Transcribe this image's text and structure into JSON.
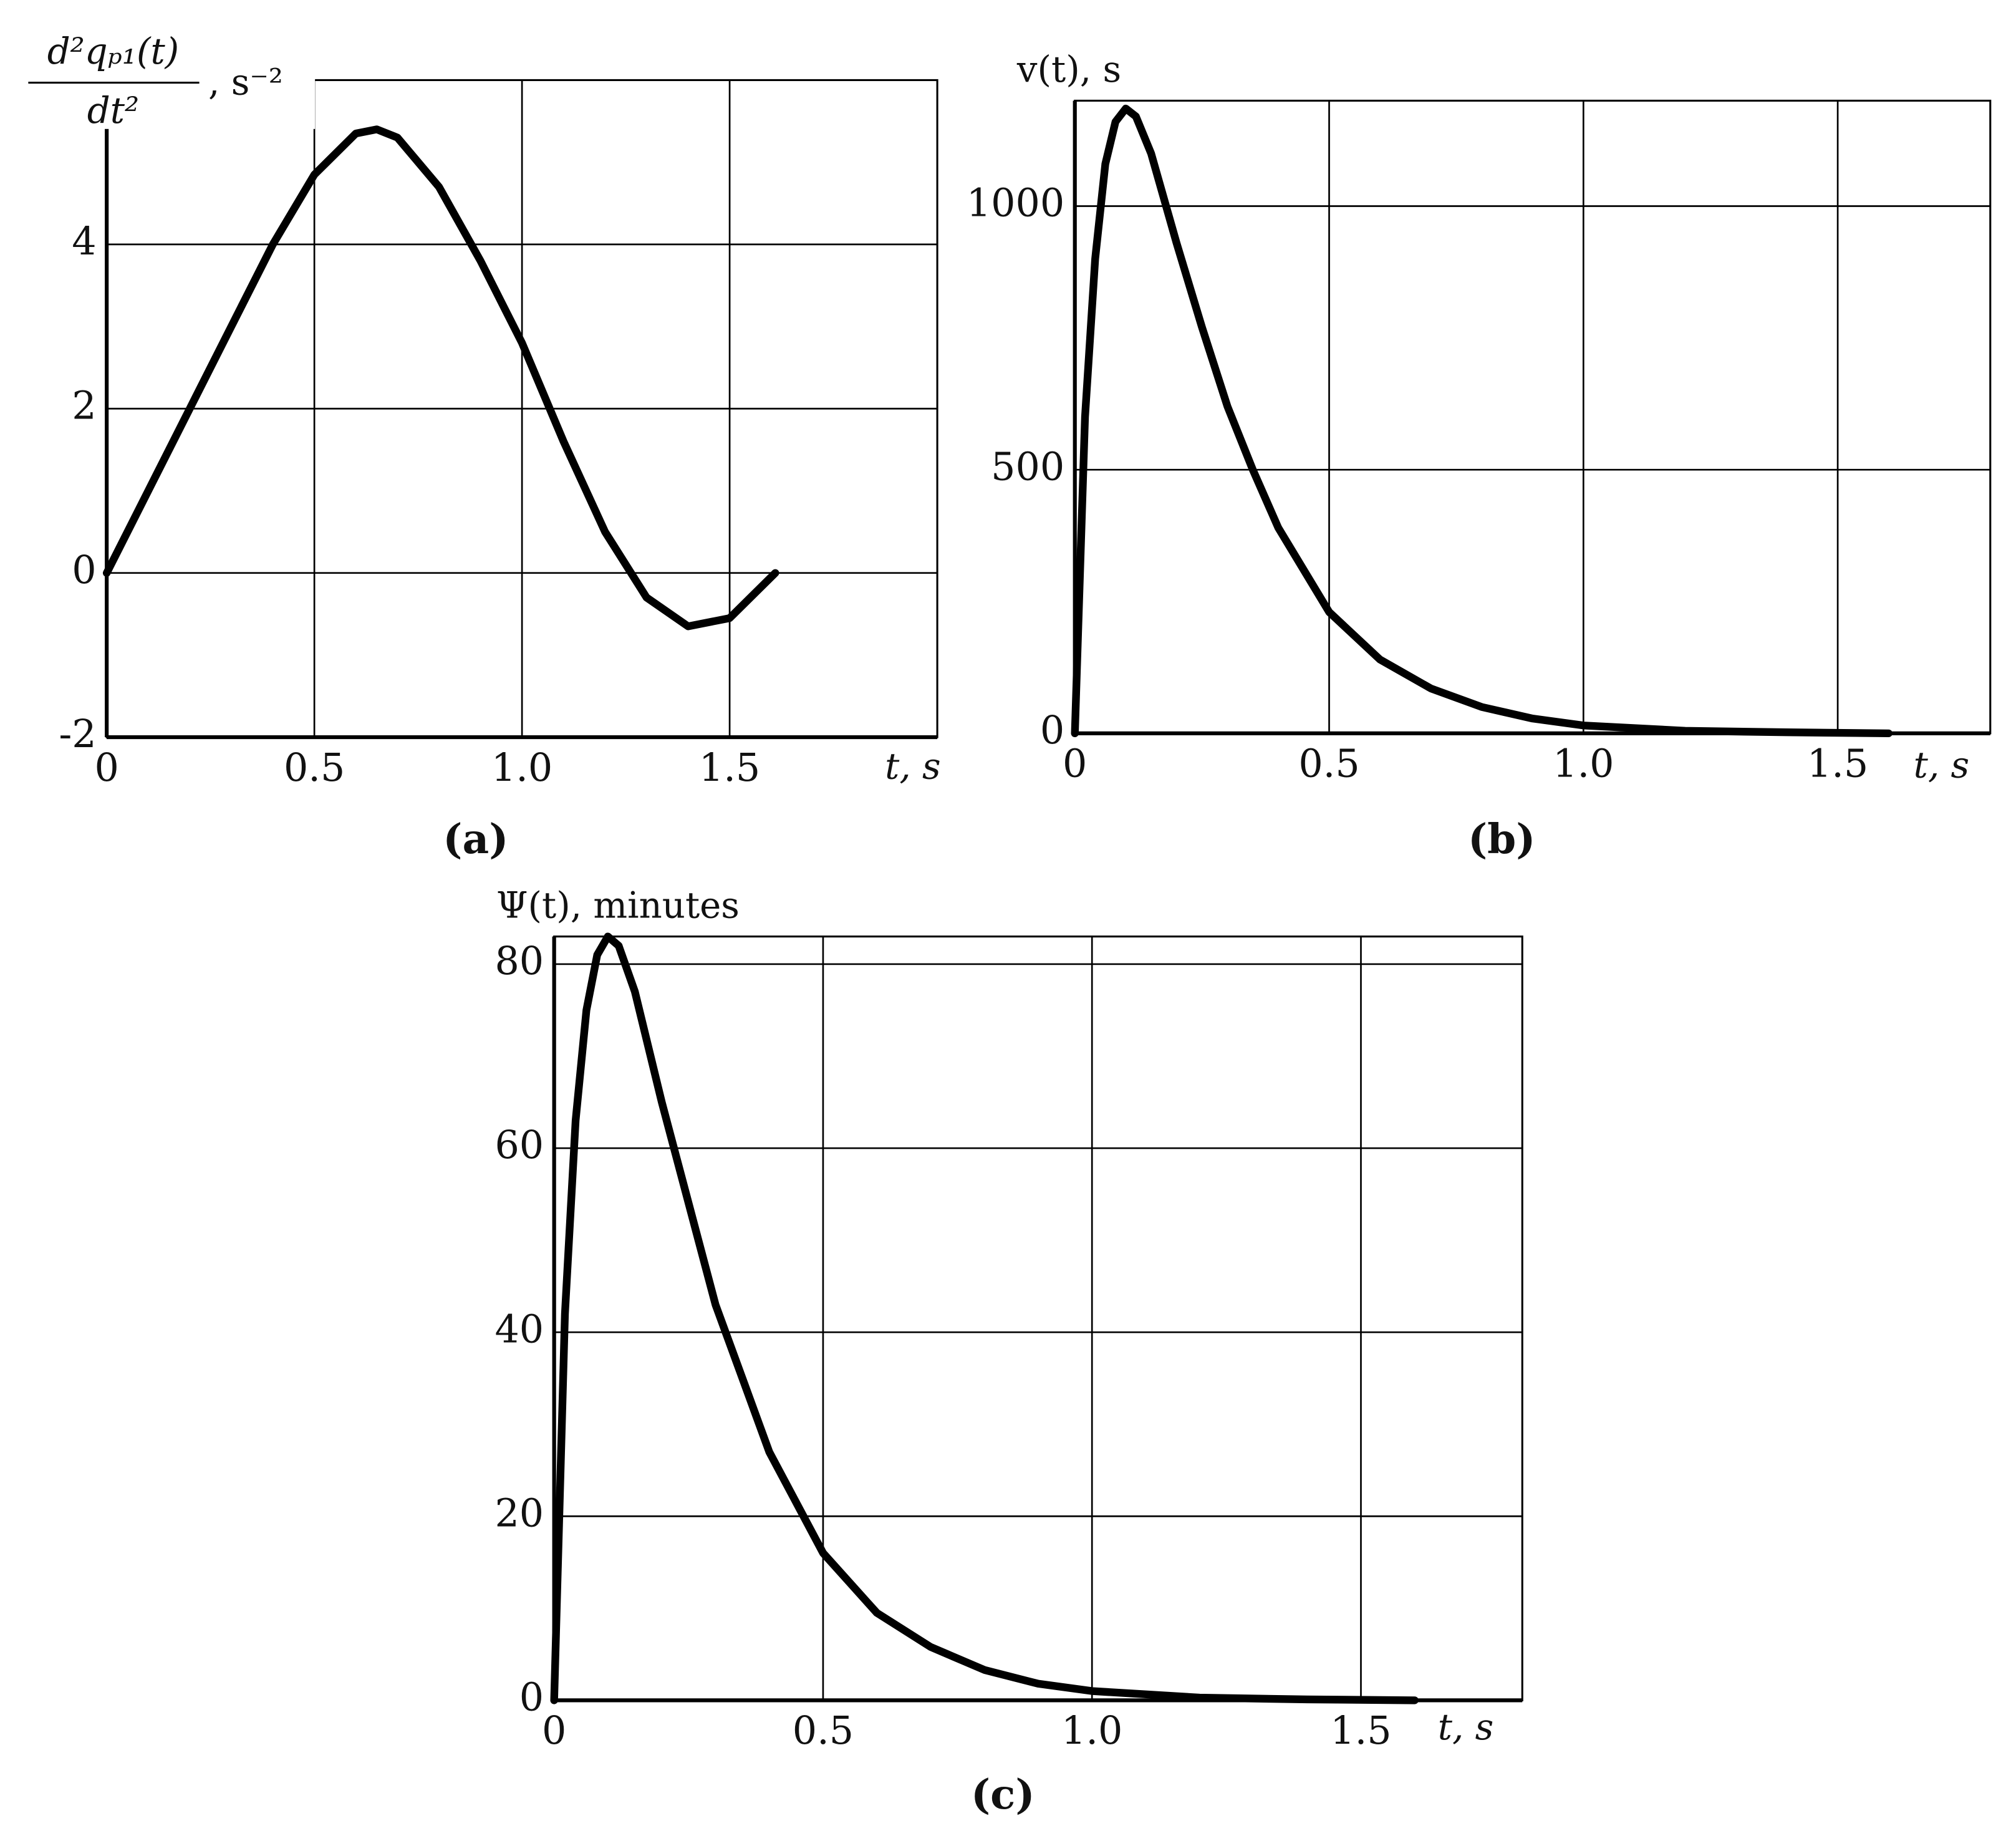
{
  "chart_data": [
    {
      "type": "line",
      "caption": "(a)",
      "ylabel": {
        "numerator": "d²qₚ₁(t)",
        "denominator": "dt²",
        "unit": ", s⁻²"
      },
      "xlabel": "t, s",
      "xlim": [
        0,
        2
      ],
      "xticks": [
        0,
        0.5,
        {
          "value": 1,
          "label": "1.0"
        },
        1.5
      ],
      "ylim": [
        -2,
        6
      ],
      "yticks": [
        -2,
        0,
        2,
        4
      ],
      "grid": true,
      "x": [
        0,
        0.1,
        0.2,
        0.3,
        0.4,
        0.5,
        0.6,
        0.65,
        0.7,
        0.8,
        0.9,
        1.0,
        1.1,
        1.2,
        1.3,
        1.4,
        1.5,
        1.61
      ],
      "series": [
        {
          "color": "#000000",
          "values": [
            0,
            1.0,
            2.0,
            3.0,
            4.0,
            4.85,
            5.35,
            5.4,
            5.3,
            4.7,
            3.8,
            2.8,
            1.6,
            0.5,
            -0.3,
            -0.65,
            -0.55,
            0
          ]
        }
      ]
    },
    {
      "type": "line",
      "caption": "(b)",
      "ylabel": "v(t), s",
      "xlabel": "t, s",
      "xlim": [
        0,
        1.8
      ],
      "xticks": [
        0,
        0.5,
        {
          "value": 1,
          "label": "1.0"
        },
        1.5
      ],
      "ylim": [
        0,
        1200
      ],
      "yticks": [
        0,
        500,
        1000
      ],
      "grid": true,
      "x": [
        0,
        0.02,
        0.04,
        0.06,
        0.08,
        0.1,
        0.12,
        0.15,
        0.2,
        0.25,
        0.3,
        0.35,
        0.4,
        0.5,
        0.6,
        0.7,
        0.8,
        0.9,
        1.0,
        1.2,
        1.4,
        1.6
      ],
      "series": [
        {
          "color": "#000000",
          "values": [
            0,
            600,
            900,
            1080,
            1160,
            1185,
            1170,
            1100,
            930,
            770,
            620,
            500,
            390,
            230,
            140,
            85,
            50,
            28,
            15,
            5,
            2,
            0
          ]
        }
      ]
    },
    {
      "type": "line",
      "caption": "(c)",
      "ylabel": "Ψ(t), minutes",
      "xlabel": "t, s",
      "xlim": [
        0,
        1.8
      ],
      "xticks": [
        0,
        0.5,
        {
          "value": 1,
          "label": "1.0"
        },
        1.5
      ],
      "ylim": [
        0,
        83
      ],
      "yticks": [
        0,
        20,
        40,
        60,
        80
      ],
      "grid": true,
      "x": [
        0,
        0.02,
        0.04,
        0.06,
        0.08,
        0.1,
        0.12,
        0.15,
        0.2,
        0.25,
        0.3,
        0.35,
        0.4,
        0.5,
        0.6,
        0.7,
        0.8,
        0.9,
        1.0,
        1.2,
        1.4,
        1.6
      ],
      "series": [
        {
          "color": "#000000",
          "values": [
            0,
            42,
            63,
            75,
            81,
            83,
            82,
            77,
            65,
            54,
            43,
            35,
            27,
            16,
            9.5,
            5.8,
            3.3,
            1.8,
            1,
            0.3,
            0.1,
            0
          ]
        }
      ]
    }
  ]
}
